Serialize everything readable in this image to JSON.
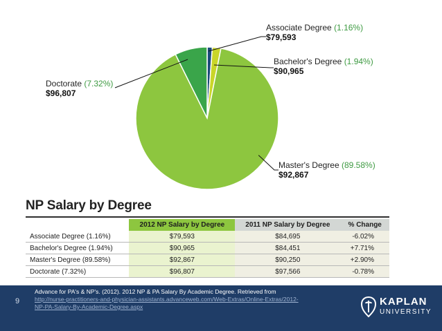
{
  "chart_data": {
    "type": "pie",
    "slices": [
      {
        "name": "Associate Degree",
        "pct_label": "(1.16%)",
        "value": 1.16,
        "salary": "$79,593",
        "color": "#1b4a7a"
      },
      {
        "name": "Bachelor's Degree",
        "pct_label": "(1.94%)",
        "value": 1.94,
        "salary": "$90,965",
        "color": "#c9d629"
      },
      {
        "name": "Master's Degree",
        "pct_label": "(89.58%)",
        "value": 89.58,
        "salary": "$92,867",
        "color": "#8dc63f"
      },
      {
        "name": "Doctorate",
        "pct_label": "(7.32%)",
        "value": 7.32,
        "salary": "$96,807",
        "color": "#3aa54a"
      }
    ]
  },
  "table": {
    "title": "NP Salary by Degree",
    "headers": [
      "",
      "2012 NP Salary by Degree",
      "2011 NP Salary by Degree",
      "% Change"
    ],
    "rows": [
      [
        "Associate Degree (1.16%)",
        "$79,593",
        "$84,695",
        "-6.02%"
      ],
      [
        "Bachelor's Degree (1.94%)",
        "$90,965",
        "$84,451",
        "+7.71%"
      ],
      [
        "Master's Degree (89.58%)",
        "$92,867",
        "$90,250",
        "+2.90%"
      ],
      [
        "Doctorate (7.32%)",
        "$96,807",
        "$97,566",
        "-0.78%"
      ]
    ]
  },
  "footer": {
    "page_number": "9",
    "citation": "Advance for PA's & NP's. (2012). 2012 NP & PA Salary By Academic Degree. Retrieved from",
    "link_line1": "http://nurse-practitioners-and-physician-assistants.advanceweb.com/Web-Extras/Online-Extras/2012-",
    "link_line2": "NP-PA-Salary-By-Academic-Degree.aspx",
    "logo_line1": "KAPLAN",
    "logo_line2": "UNIVERSITY"
  }
}
